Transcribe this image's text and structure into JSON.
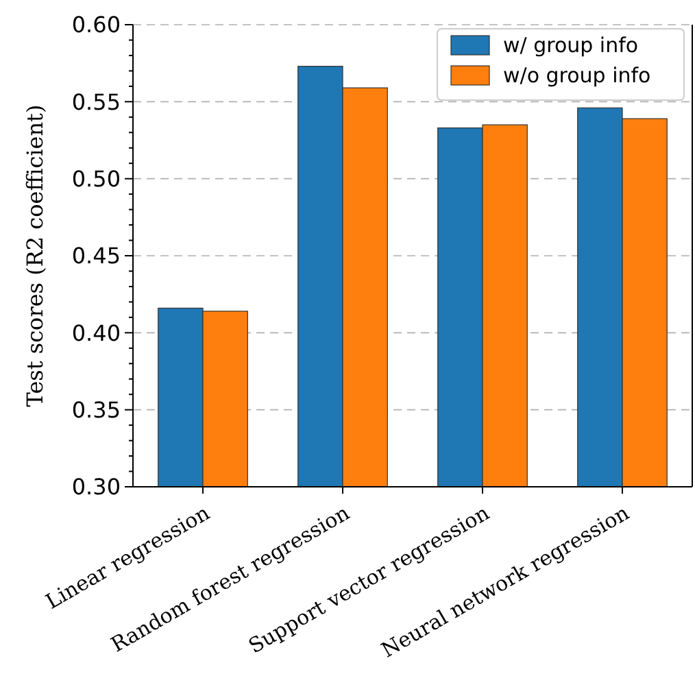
{
  "chart_data": {
    "type": "bar",
    "ylabel": "Test scores (R2 coefficient)",
    "categories": [
      "Linear regression",
      "Random forest regression",
      "Support vector regression",
      "Neural network regression"
    ],
    "series": [
      {
        "name": "w/ group info",
        "color": "#1f77b4",
        "values": [
          0.416,
          0.573,
          0.533,
          0.546
        ]
      },
      {
        "name": "w/o group info",
        "color": "#ff7f0e",
        "values": [
          0.414,
          0.559,
          0.535,
          0.539
        ]
      }
    ],
    "ylim": [
      0.3,
      0.6
    ],
    "yticks": [
      {
        "value": 0.3,
        "label": "0.30"
      },
      {
        "value": 0.31,
        "label": null
      },
      {
        "value": 0.32,
        "label": null
      },
      {
        "value": 0.33,
        "label": null
      },
      {
        "value": 0.34,
        "label": null
      },
      {
        "value": 0.35,
        "label": "0.35"
      },
      {
        "value": 0.36,
        "label": null
      },
      {
        "value": 0.37,
        "label": null
      },
      {
        "value": 0.38,
        "label": null
      },
      {
        "value": 0.39,
        "label": null
      },
      {
        "value": 0.4,
        "label": "0.40"
      },
      {
        "value": 0.41,
        "label": null
      },
      {
        "value": 0.42,
        "label": null
      },
      {
        "value": 0.43,
        "label": null
      },
      {
        "value": 0.44,
        "label": null
      },
      {
        "value": 0.45,
        "label": "0.45"
      },
      {
        "value": 0.46,
        "label": null
      },
      {
        "value": 0.47,
        "label": null
      },
      {
        "value": 0.48,
        "label": null
      },
      {
        "value": 0.49,
        "label": null
      },
      {
        "value": 0.5,
        "label": "0.50"
      },
      {
        "value": 0.51,
        "label": null
      },
      {
        "value": 0.52,
        "label": null
      },
      {
        "value": 0.53,
        "label": null
      },
      {
        "value": 0.54,
        "label": null
      },
      {
        "value": 0.55,
        "label": "0.55"
      },
      {
        "value": 0.56,
        "label": null
      },
      {
        "value": 0.57,
        "label": null
      },
      {
        "value": 0.58,
        "label": null
      },
      {
        "value": 0.59,
        "label": null
      },
      {
        "value": 0.6,
        "label": "0.60"
      }
    ],
    "grid": "y",
    "legend": "top right"
  }
}
